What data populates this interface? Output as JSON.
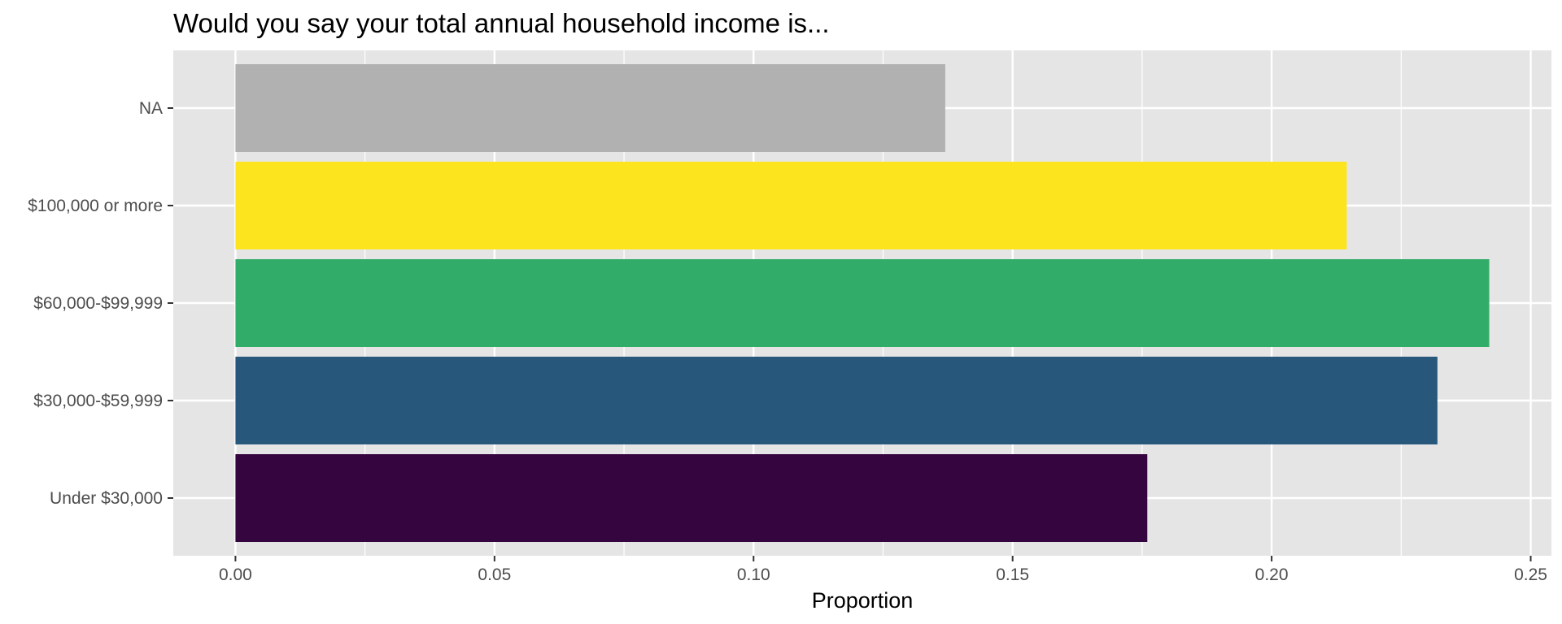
{
  "chart_data": {
    "type": "bar",
    "orientation": "horizontal",
    "title": "Would you say your total annual household income is...",
    "xlabel": "Proportion",
    "ylabel": "",
    "categories": [
      "Under $30,000",
      "$30,000-$59,999",
      "$60,000-$99,999",
      "$100,000 or more",
      "NA"
    ],
    "values": [
      0.176,
      0.232,
      0.242,
      0.2145,
      0.137
    ],
    "colors": [
      "#35053f",
      "#27577b",
      "#32ad69",
      "#fce51f",
      "#b1b1b1"
    ],
    "xlim": [
      -0.012,
      0.254
    ],
    "xticks": [
      0.0,
      0.05,
      0.1,
      0.15,
      0.2,
      0.25
    ],
    "xtick_labels": [
      "0.00",
      "0.05",
      "0.10",
      "0.15",
      "0.20",
      "0.25"
    ],
    "grid": true,
    "panel_background": "#e5e5e5",
    "grid_color": "#ffffff",
    "legend": "none"
  }
}
